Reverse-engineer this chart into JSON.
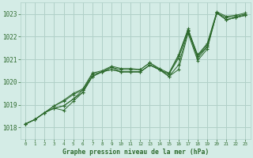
{
  "bg_color": "#d4ece6",
  "grid_color": "#b0d0c8",
  "line_color": "#2d6a2d",
  "title": "Graphe pression niveau de la mer (hPa)",
  "xlim": [
    -0.5,
    23.5
  ],
  "ylim": [
    1017.5,
    1023.5
  ],
  "yticks": [
    1018,
    1019,
    1020,
    1021,
    1022,
    1023
  ],
  "xticks": [
    0,
    1,
    2,
    3,
    4,
    5,
    6,
    7,
    8,
    9,
    10,
    11,
    12,
    13,
    14,
    15,
    16,
    17,
    18,
    19,
    20,
    21,
    22,
    23
  ],
  "series": [
    [
      1018.15,
      1018.35,
      1018.65,
      1018.85,
      1018.75,
      1019.15,
      1019.55,
      1020.25,
      1020.45,
      1020.55,
      1020.45,
      1020.45,
      1020.45,
      1020.75,
      1020.55,
      1020.25,
      1020.55,
      1022.15,
      1020.95,
      1021.45,
      1023.05,
      1022.75,
      1022.85,
      1022.95
    ],
    [
      1018.15,
      1018.35,
      1018.65,
      1018.85,
      1018.95,
      1019.25,
      1019.55,
      1020.25,
      1020.45,
      1020.55,
      1020.45,
      1020.45,
      1020.45,
      1020.75,
      1020.55,
      1020.25,
      1020.75,
      1022.25,
      1021.05,
      1021.55,
      1023.05,
      1022.75,
      1022.85,
      1022.95
    ],
    [
      1018.15,
      1018.35,
      1018.65,
      1018.85,
      1018.95,
      1019.25,
      1019.65,
      1020.25,
      1020.45,
      1020.65,
      1020.45,
      1020.45,
      1020.45,
      1020.75,
      1020.55,
      1020.35,
      1021.05,
      1022.25,
      1021.15,
      1021.55,
      1023.05,
      1022.75,
      1022.85,
      1022.95
    ],
    [
      1018.15,
      1018.35,
      1018.65,
      1018.95,
      1019.15,
      1019.45,
      1019.65,
      1020.35,
      1020.45,
      1020.65,
      1020.55,
      1020.55,
      1020.55,
      1020.85,
      1020.55,
      1020.35,
      1021.15,
      1022.35,
      1021.15,
      1021.65,
      1023.05,
      1022.85,
      1022.9,
      1023.0
    ],
    [
      1018.15,
      1018.35,
      1018.65,
      1018.95,
      1019.2,
      1019.5,
      1019.7,
      1020.4,
      1020.5,
      1020.7,
      1020.6,
      1020.6,
      1020.55,
      1020.85,
      1020.6,
      1020.4,
      1021.2,
      1022.3,
      1021.2,
      1021.7,
      1023.1,
      1022.9,
      1022.95,
      1023.05
    ]
  ]
}
